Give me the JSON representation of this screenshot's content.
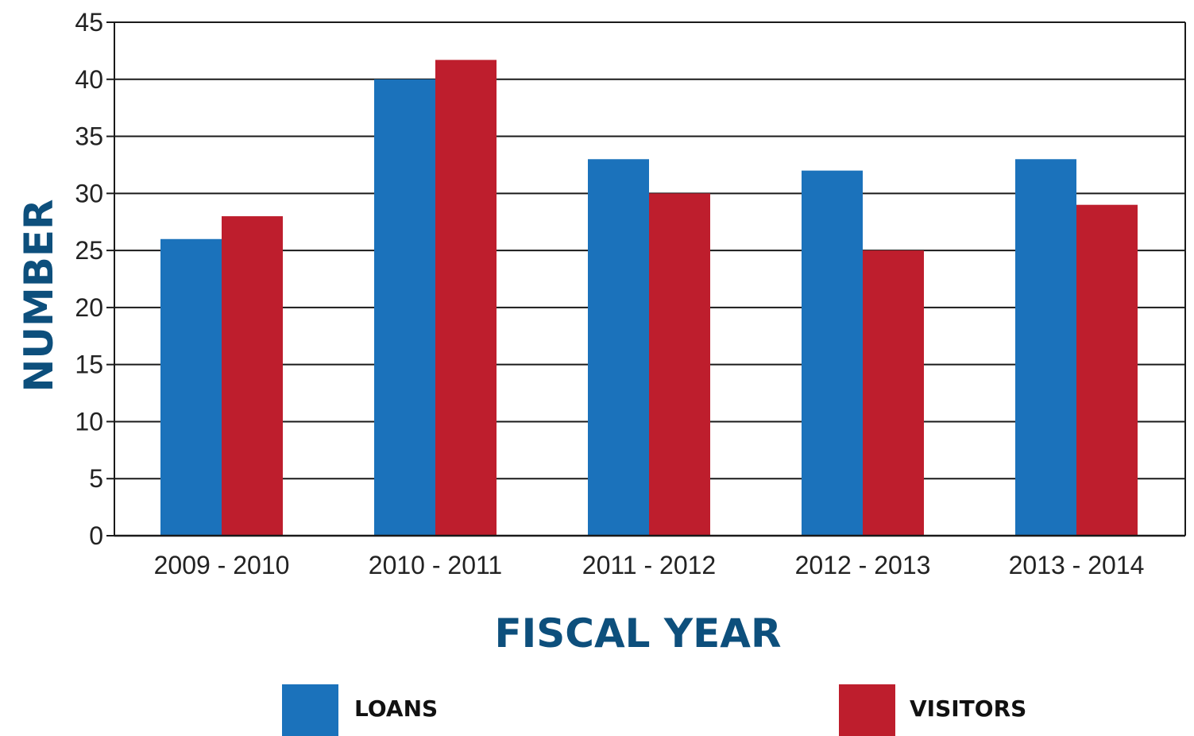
{
  "chart_data": {
    "type": "bar",
    "title": "",
    "xlabel": "FISCAL YEAR",
    "ylabel": "NUMBER",
    "categories": [
      "2009 - 2010",
      "2010 - 2011",
      "2011 - 2012",
      "2012 - 2013",
      "2013 - 2014"
    ],
    "series": [
      {
        "name": "LOANS",
        "color": "#1b72bb",
        "values": [
          26,
          40,
          33,
          32,
          33
        ]
      },
      {
        "name": "VISITORS",
        "color": "#be1e2d",
        "values": [
          28,
          41.7,
          30,
          25,
          29
        ]
      }
    ],
    "ylim": [
      0,
      45
    ],
    "yticks": [
      "0",
      "5",
      "10",
      "15",
      "20",
      "25",
      "30",
      "35",
      "40",
      "45"
    ],
    "grid": true,
    "legend_position": "bottom",
    "axis_title_color": "#0d4f7c"
  }
}
